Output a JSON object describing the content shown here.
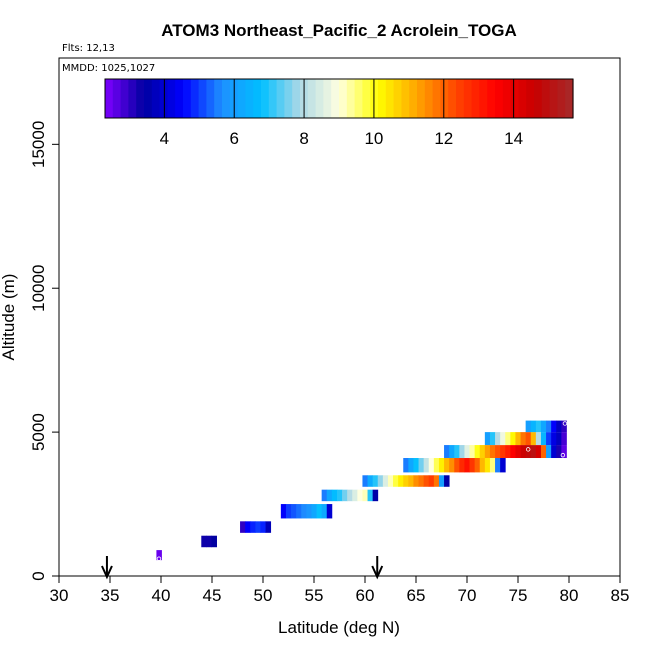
{
  "chart_data": {
    "type": "heatmap",
    "title": "ATOM3 Northeast_Pacific_2 Acrolein_TOGA",
    "notes": {
      "flights": "Flts: 12,13",
      "dates": "MMDD: 1025,1027"
    },
    "xlabel": "Latitude (deg N)",
    "ylabel": "Altitude (m)",
    "xlim": [
      30,
      85
    ],
    "ylim": [
      0,
      18000
    ],
    "x_ticks": [
      30,
      35,
      40,
      45,
      50,
      55,
      60,
      65,
      70,
      75,
      80,
      85
    ],
    "y_ticks": [
      0,
      5000,
      10000,
      15000
    ],
    "colorbar": {
      "range": [
        2.3,
        15.7
      ],
      "ticks": [
        4,
        6,
        8,
        10,
        12,
        14
      ],
      "colors": [
        "#7f00ff",
        "#0000a0",
        "#0000ff",
        "#1e90ff",
        "#00bfff",
        "#add8e6",
        "#ffffe0",
        "#ffff00",
        "#ffa500",
        "#ff4500",
        "#ff0000",
        "#c80000",
        "#a52a2a"
      ]
    },
    "arrows_at_latitude": [
      34.7,
      61.2
    ],
    "cell_width_deg": 0.5,
    "rows": [
      {
        "alt_bottom": 550,
        "alt_top": 900,
        "cells": [
          [
            39.8,
            2.5
          ]
        ]
      },
      {
        "alt_bottom": 1000,
        "alt_top": 1400,
        "cells": [
          [
            44.2,
            3.3
          ],
          [
            44.7,
            3.3
          ],
          [
            45.2,
            3.4
          ]
        ]
      },
      {
        "alt_bottom": 1500,
        "alt_top": 1900,
        "cells": [
          [
            48.0,
            3.0
          ],
          [
            48.5,
            4.5
          ],
          [
            49.0,
            4.8
          ],
          [
            49.5,
            5.0
          ],
          [
            50.0,
            4.8
          ],
          [
            50.5,
            3.7
          ]
        ]
      },
      {
        "alt_bottom": 2000,
        "alt_top": 2500,
        "cells": [
          [
            52.0,
            4.5
          ],
          [
            52.5,
            5.0
          ],
          [
            53.0,
            5.2
          ],
          [
            53.5,
            5.4
          ],
          [
            54.0,
            5.6
          ],
          [
            54.5,
            5.8
          ],
          [
            55.0,
            6.2
          ],
          [
            55.5,
            6.8
          ],
          [
            56.0,
            6.3
          ],
          [
            56.5,
            4.0
          ]
        ]
      },
      {
        "alt_bottom": 2600,
        "alt_top": 3000,
        "cells": [
          [
            56.0,
            5.5
          ],
          [
            56.5,
            6.2
          ],
          [
            57.0,
            6.7
          ],
          [
            57.5,
            7.0
          ],
          [
            58.0,
            7.5
          ],
          [
            58.5,
            8.0
          ],
          [
            59.0,
            8.5
          ],
          [
            59.5,
            9.0
          ],
          [
            60.0,
            9.2
          ],
          [
            60.5,
            7.0
          ],
          [
            61.0,
            3.5
          ]
        ]
      },
      {
        "alt_bottom": 3100,
        "alt_top": 3500,
        "cells": [
          [
            60.0,
            5.5
          ],
          [
            60.5,
            6.3
          ],
          [
            61.0,
            7.0
          ],
          [
            61.5,
            7.7
          ],
          [
            62.0,
            8.5
          ],
          [
            62.5,
            9.2
          ],
          [
            63.0,
            9.8
          ],
          [
            63.5,
            10.3
          ],
          [
            64.0,
            10.7
          ],
          [
            64.5,
            11.0
          ],
          [
            65.0,
            11.5
          ],
          [
            65.5,
            11.8
          ],
          [
            66.0,
            12.2
          ],
          [
            66.5,
            12.5
          ],
          [
            67.0,
            11.8
          ],
          [
            67.5,
            6.0
          ],
          [
            68.0,
            3.5
          ]
        ]
      },
      {
        "alt_bottom": 3600,
        "alt_top": 4100,
        "cells": [
          [
            64.0,
            5.5
          ],
          [
            64.5,
            6.2
          ],
          [
            65.0,
            6.8
          ],
          [
            65.5,
            7.5
          ],
          [
            66.0,
            8.2
          ],
          [
            66.5,
            9.0
          ],
          [
            67.0,
            9.7
          ],
          [
            67.5,
            10.3
          ],
          [
            68.0,
            11.0
          ],
          [
            68.5,
            11.5
          ],
          [
            69.0,
            12.2
          ],
          [
            69.5,
            12.8
          ],
          [
            70.0,
            13.2
          ],
          [
            70.5,
            12.6
          ],
          [
            71.0,
            12.0
          ],
          [
            71.5,
            11.0
          ],
          [
            72.0,
            10.4
          ],
          [
            72.5,
            9.5
          ],
          [
            73.0,
            5.5
          ],
          [
            73.5,
            4.0
          ]
        ]
      },
      {
        "alt_bottom": 4100,
        "alt_top": 4550,
        "cells": [
          [
            68.0,
            5.5
          ],
          [
            68.5,
            6.2
          ],
          [
            69.0,
            7.0
          ],
          [
            69.5,
            7.8
          ],
          [
            70.0,
            8.6
          ],
          [
            70.5,
            9.3
          ],
          [
            71.0,
            10.0
          ],
          [
            71.5,
            10.7
          ],
          [
            72.0,
            11.3
          ],
          [
            72.5,
            11.8
          ],
          [
            73.0,
            12.2
          ],
          [
            73.5,
            12.6
          ],
          [
            74.0,
            13.0
          ],
          [
            74.5,
            13.5
          ],
          [
            75.0,
            14.0
          ],
          [
            75.5,
            14.5
          ],
          [
            76.0,
            14.8
          ],
          [
            76.5,
            15.0
          ],
          [
            77.0,
            14.3
          ],
          [
            77.5,
            12.0
          ],
          [
            78.0,
            6.0
          ],
          [
            78.5,
            4.0
          ],
          [
            79.0,
            3.2
          ],
          [
            79.5,
            2.6
          ]
        ]
      },
      {
        "alt_bottom": 4550,
        "alt_top": 5000,
        "cells": [
          [
            72.0,
            6.0
          ],
          [
            72.5,
            7.0
          ],
          [
            73.0,
            8.0
          ],
          [
            73.5,
            8.8
          ],
          [
            74.0,
            9.5
          ],
          [
            74.5,
            10.2
          ],
          [
            75.0,
            11.0
          ],
          [
            75.5,
            11.8
          ],
          [
            76.0,
            12.2
          ],
          [
            76.5,
            11.0
          ],
          [
            77.0,
            8.0
          ],
          [
            77.5,
            6.5
          ],
          [
            78.0,
            5.0
          ],
          [
            78.5,
            4.2
          ],
          [
            79.0,
            3.8
          ],
          [
            79.5,
            2.8
          ]
        ]
      },
      {
        "alt_bottom": 5000,
        "alt_top": 5400,
        "cells": [
          [
            76.0,
            6.0
          ],
          [
            76.5,
            6.5
          ],
          [
            77.0,
            7.0
          ],
          [
            77.5,
            6.2
          ],
          [
            78.0,
            5.5
          ],
          [
            78.5,
            4.5
          ],
          [
            79.0,
            3.8
          ],
          [
            79.5,
            3.0
          ]
        ]
      }
    ],
    "markers": [
      [
        39.8,
        600
      ],
      [
        76.0,
        4400
      ],
      [
        79.6,
        5300
      ],
      [
        79.4,
        4200
      ]
    ]
  }
}
